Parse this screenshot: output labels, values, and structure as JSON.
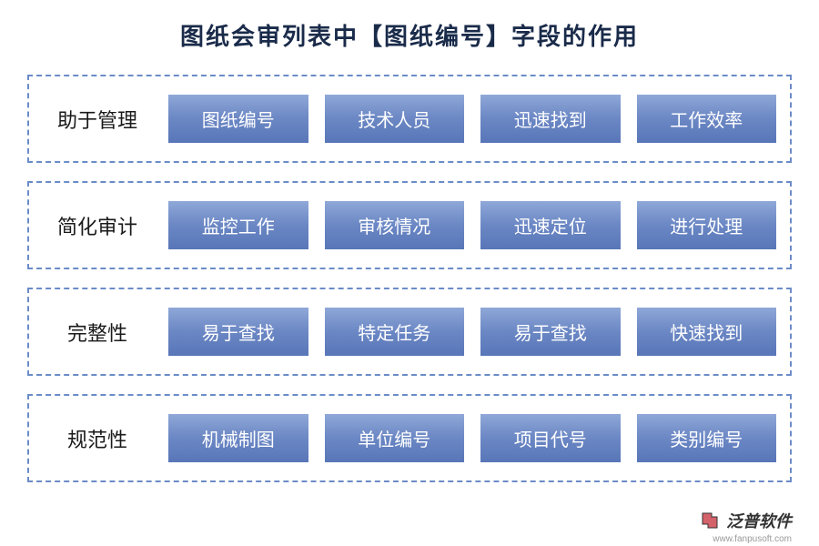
{
  "title": "图纸会审列表中【图纸编号】字段的作用",
  "rows": [
    {
      "label": "助于管理",
      "items": [
        "图纸编号",
        "技术人员",
        "迅速找到",
        "工作效率"
      ]
    },
    {
      "label": "简化审计",
      "items": [
        "监控工作",
        "审核情况",
        "迅速定位",
        "进行处理"
      ]
    },
    {
      "label": "完整性",
      "items": [
        "易于查找",
        "特定任务",
        "易于查找",
        "快速找到"
      ]
    },
    {
      "label": "规范性",
      "items": [
        "机械制图",
        "单位编号",
        "项目代号",
        "类别编号"
      ]
    }
  ],
  "footer": {
    "brand": "泛普软件",
    "url": "www.fanpusoft.com"
  },
  "styling": {
    "title_color": "#1a2b4a",
    "title_fontsize": 26,
    "row_border_color": "#6b8cc7",
    "row_border_style": "dashed",
    "row_border_width": 2,
    "label_fontsize": 22,
    "label_color": "#1a1a1a",
    "item_bg_gradient": [
      "#8fa8d8",
      "#6b87c4",
      "#5876b8"
    ],
    "item_text_color": "#ffffff",
    "item_fontsize": 20,
    "background_color": "#ffffff",
    "row_gap": 20,
    "item_gap": 18
  }
}
